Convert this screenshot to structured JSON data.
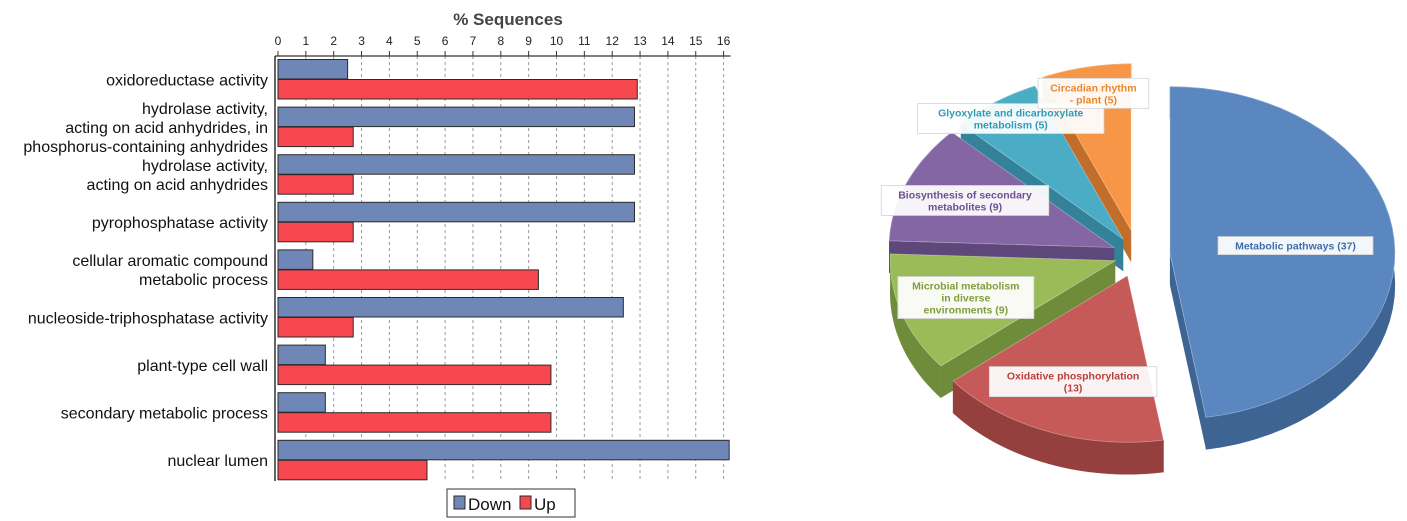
{
  "chart_data": [
    {
      "type": "bar",
      "orientation": "horizontal",
      "title": "% Sequences",
      "xlim": [
        0,
        16
      ],
      "xticks": [
        "0",
        "1",
        "2",
        "3",
        "4",
        "5",
        "6",
        "7",
        "8",
        "9",
        "10",
        "11",
        "12",
        "13",
        "14",
        "15",
        "16"
      ],
      "grid": true,
      "legend_position": "bottom",
      "categories": [
        [
          "oxidoreductase activity"
        ],
        [
          "hydrolase activity,",
          "acting on acid anhydrides, in",
          "phosphorus-containing anhydrides"
        ],
        [
          "hydrolase activity,",
          "acting on acid anhydrides"
        ],
        [
          "pyrophosphatase activity"
        ],
        [
          "cellular aromatic compound",
          "metabolic process"
        ],
        [
          "nucleoside-triphosphatase activity"
        ],
        [
          "plant-type cell wall"
        ],
        [
          "secondary metabolic process"
        ],
        [
          "nuclear lumen"
        ]
      ],
      "series": [
        {
          "name": "Down",
          "color": "#6f87b6",
          "values": [
            2.5,
            12.8,
            12.8,
            12.8,
            1.25,
            12.4,
            1.7,
            1.7,
            16.2
          ]
        },
        {
          "name": "Up",
          "color": "#f7474f",
          "values": [
            12.9,
            2.7,
            2.7,
            2.7,
            9.35,
            2.7,
            9.8,
            9.8,
            5.35
          ]
        }
      ]
    },
    {
      "type": "pie",
      "style": "3d-exploded",
      "legend_position": "none",
      "slices": [
        {
          "label": [
            "Metabolic pathways (37)"
          ],
          "value": 37,
          "color": "#5b87c1",
          "side_color": "#3e6494",
          "text_color": "#3f6da8"
        },
        {
          "label": [
            "Oxidative phosphorylation",
            "(13)"
          ],
          "value": 13,
          "color": "#c55a58",
          "side_color": "#95403e",
          "text_color": "#b7403c"
        },
        {
          "label": [
            "Microbial metabolism",
            "in diverse",
            "environments (9)"
          ],
          "value": 9,
          "color": "#9bbb59",
          "side_color": "#6f8c3b",
          "text_color": "#7e9f3c"
        },
        {
          "label": [
            "Biosynthesis of secondary",
            "metabolites (9)"
          ],
          "value": 9,
          "color": "#8466a4",
          "side_color": "#5e477a",
          "text_color": "#6d4f8f"
        },
        {
          "label": [
            "Glyoxylate and dicarboxylate",
            "metabolism (5)"
          ],
          "value": 5,
          "color": "#4bacc6",
          "side_color": "#33829a",
          "text_color": "#2f9bb8"
        },
        {
          "label": [
            "Circadian rhythm",
            "- plant (5)"
          ],
          "value": 5,
          "color": "#f79646",
          "side_color": "#c06e2a",
          "text_color": "#e8852f"
        }
      ]
    }
  ]
}
